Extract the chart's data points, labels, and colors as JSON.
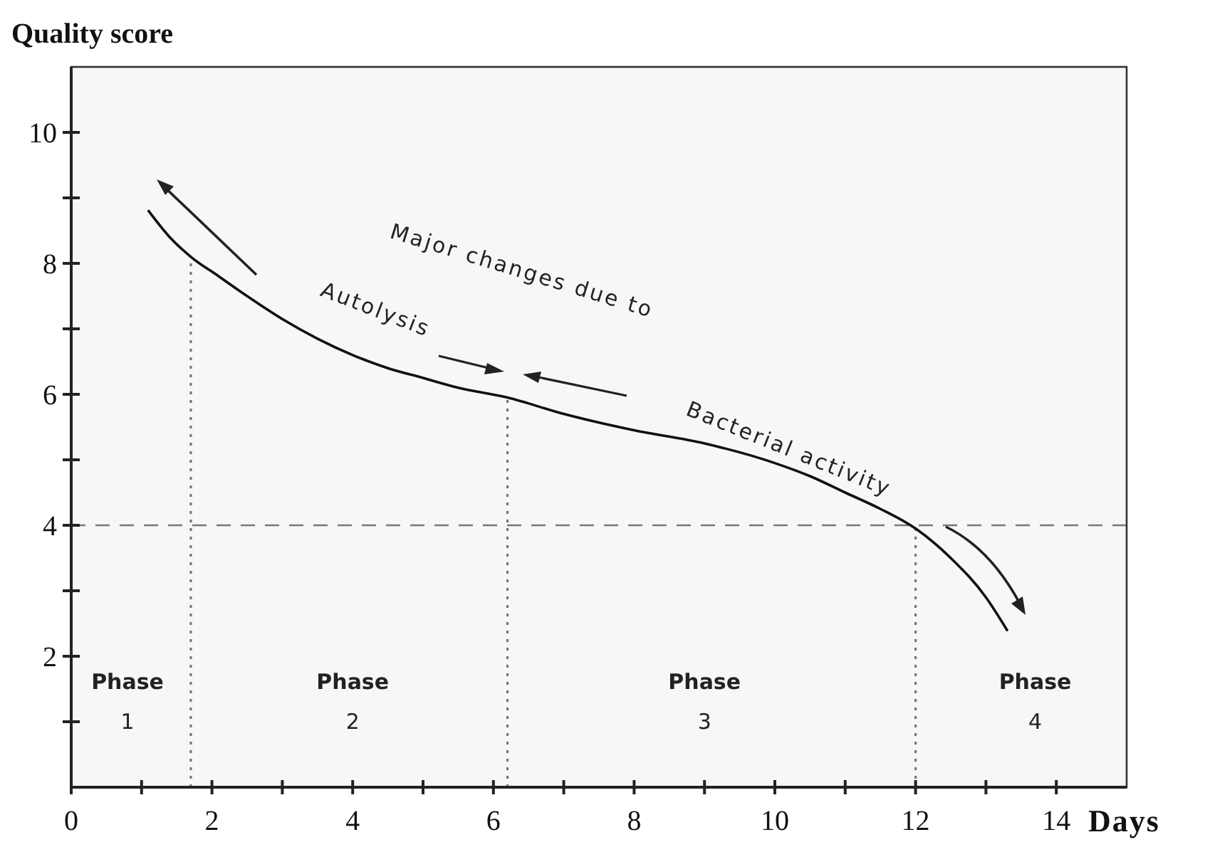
{
  "chart_data": {
    "type": "line",
    "xlabel": "Days",
    "ylabel": "Quality score",
    "xlim": [
      0,
      15
    ],
    "ylim": [
      0,
      11
    ],
    "xticks": [
      0,
      {
        "value": 1,
        "label": null
      },
      2,
      {
        "value": 3,
        "label": null
      },
      4,
      {
        "value": 5,
        "label": null
      },
      6,
      {
        "value": 7,
        "label": null
      },
      8,
      {
        "value": 9,
        "label": null
      },
      10,
      {
        "value": 11,
        "label": null
      },
      12,
      {
        "value": 13,
        "label": null
      },
      14
    ],
    "yticks": [
      {
        "value": 1,
        "label": null
      },
      2,
      {
        "value": 3,
        "label": null
      },
      4,
      {
        "value": 5,
        "label": null
      },
      6,
      {
        "value": 7,
        "label": null
      },
      8,
      {
        "value": 9,
        "label": null
      },
      10
    ],
    "series": [
      {
        "color": "#111111",
        "line_style": "solid",
        "x": [
          1.1,
          1.4,
          1.7,
          2.1,
          2.5,
          3,
          3.5,
          4,
          4.5,
          5,
          5.5,
          6.2,
          7,
          8,
          9,
          10,
          10.5,
          11,
          11.5,
          12,
          12.5,
          13,
          13.3
        ],
        "values": [
          8.8,
          8.4,
          8.1,
          7.8,
          7.5,
          7.15,
          6.85,
          6.6,
          6.4,
          6.25,
          6.1,
          5.95,
          5.7,
          5.45,
          5.25,
          4.95,
          4.75,
          4.5,
          4.25,
          3.95,
          3.5,
          2.9,
          2.4
        ]
      }
    ],
    "ref_lines": [
      {
        "axis": "y",
        "value": 4,
        "color": "#777777",
        "line_style": "dashed"
      },
      {
        "axis": "x",
        "value": 1.7,
        "color": "#777777",
        "line_style": "dotted"
      },
      {
        "axis": "x",
        "value": 6.2,
        "color": "#777777",
        "line_style": "dotted"
      },
      {
        "axis": "x",
        "value": 12,
        "color": "#777777",
        "line_style": "dotted"
      }
    ],
    "annotations": [
      "Major changes due to",
      "Autolysis",
      "Bacterial activity",
      "Phase 1",
      "Phase 2",
      "Phase 3",
      "Phase 4"
    ]
  }
}
